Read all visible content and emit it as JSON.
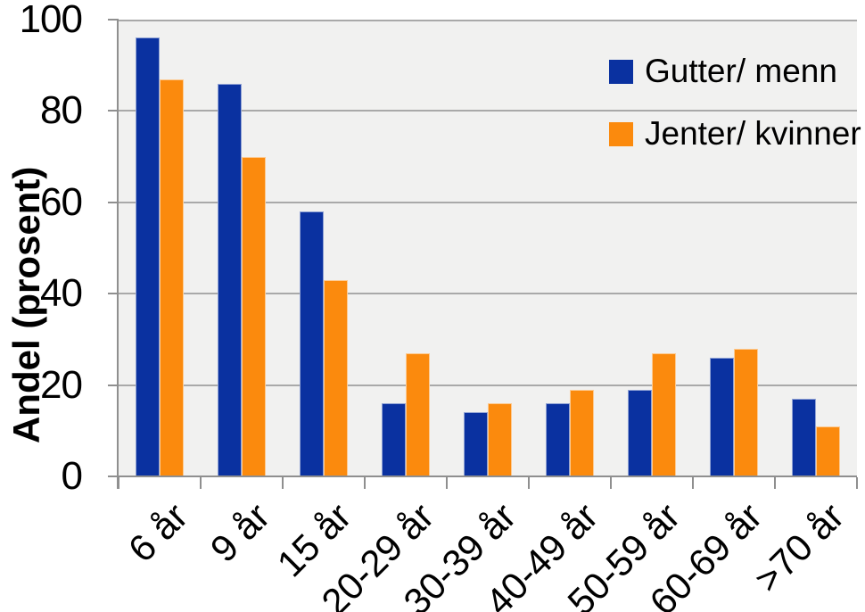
{
  "chart_data": {
    "type": "bar",
    "title": "",
    "xlabel": "",
    "ylabel": "Andel (prosent)",
    "ylim": [
      0,
      100
    ],
    "yticks": [
      0,
      20,
      40,
      60,
      80,
      100
    ],
    "grid": true,
    "plot_background": "#F1F1F0",
    "gridline_color": "#A9A9A9",
    "axis_color": "#8F8F8F",
    "legend_position": "top-right-inside",
    "categories": [
      "6 år",
      "9 år",
      "15 år",
      "20-29 år",
      "30-39 år",
      "40-49 år",
      "50-59 år",
      "60-69 år",
      ">70 år"
    ],
    "series": [
      {
        "name": "Gutter/ menn",
        "color": "#0A31A0",
        "values": [
          96,
          86,
          58,
          16,
          14,
          16,
          19,
          26,
          17
        ]
      },
      {
        "name": "Jenter/ kvinner",
        "color": "#FB8A0D",
        "values": [
          87,
          70,
          43,
          27,
          16,
          19,
          27,
          28,
          11
        ]
      }
    ]
  }
}
